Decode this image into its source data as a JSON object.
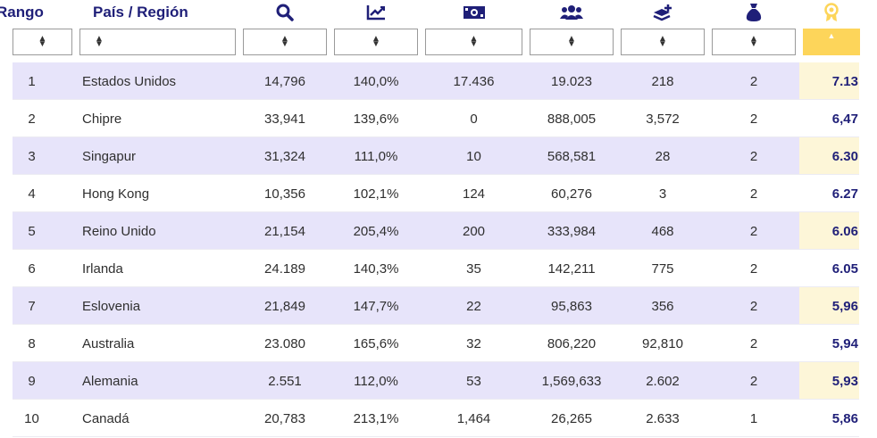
{
  "header": {
    "rank_label": "Rango",
    "country_label": "País / Región",
    "icons": [
      "search-icon",
      "chart-line-icon",
      "money-bill-icon",
      "users-icon",
      "layers-plus-icon",
      "money-bag-icon",
      "award-medal-icon"
    ]
  },
  "colors": {
    "accent": "#1f1f78",
    "shaded_row": "#e7e4fa",
    "sort_active": "#fdd55a",
    "score_bg": "#fdf6d8"
  },
  "rows": [
    {
      "rank": "1",
      "country": "Estados Unidos",
      "c1": "14,796",
      "c2": "140,0%",
      "c3": "17.436",
      "c4": "19.023",
      "c5": "218",
      "c6": "2",
      "score": "7.13"
    },
    {
      "rank": "2",
      "country": "Chipre",
      "c1": "33,941",
      "c2": "139,6%",
      "c3": "0",
      "c4": "888,005",
      "c5": "3,572",
      "c6": "2",
      "score": "6,47"
    },
    {
      "rank": "3",
      "country": "Singapur",
      "c1": "31,324",
      "c2": "111,0%",
      "c3": "10",
      "c4": "568,581",
      "c5": "28",
      "c6": "2",
      "score": "6.30"
    },
    {
      "rank": "4",
      "country": "Hong Kong",
      "c1": "10,356",
      "c2": "102,1%",
      "c3": "124",
      "c4": "60,276",
      "c5": "3",
      "c6": "2",
      "score": "6.27"
    },
    {
      "rank": "5",
      "country": "Reino Unido",
      "c1": "21,154",
      "c2": "205,4%",
      "c3": "200",
      "c4": "333,984",
      "c5": "468",
      "c6": "2",
      "score": "6.06"
    },
    {
      "rank": "6",
      "country": "Irlanda",
      "c1": "24.189",
      "c2": "140,3%",
      "c3": "35",
      "c4": "142,211",
      "c5": "775",
      "c6": "2",
      "score": "6.05"
    },
    {
      "rank": "7",
      "country": "Eslovenia",
      "c1": "21,849",
      "c2": "147,7%",
      "c3": "22",
      "c4": "95,863",
      "c5": "356",
      "c6": "2",
      "score": "5,96"
    },
    {
      "rank": "8",
      "country": "Australia",
      "c1": "23.080",
      "c2": "165,6%",
      "c3": "32",
      "c4": "806,220",
      "c5": "92,810",
      "c6": "2",
      "score": "5,94"
    },
    {
      "rank": "9",
      "country": "Alemania",
      "c1": "2.551",
      "c2": "112,0%",
      "c3": "53",
      "c4": "1,569,633",
      "c5": "2.602",
      "c6": "2",
      "score": "5,93"
    },
    {
      "rank": "10",
      "country": "Canadá",
      "c1": "20,783",
      "c2": "213,1%",
      "c3": "1,464",
      "c4": "26,265",
      "c5": "2.633",
      "c6": "1",
      "score": "5,86"
    }
  ]
}
